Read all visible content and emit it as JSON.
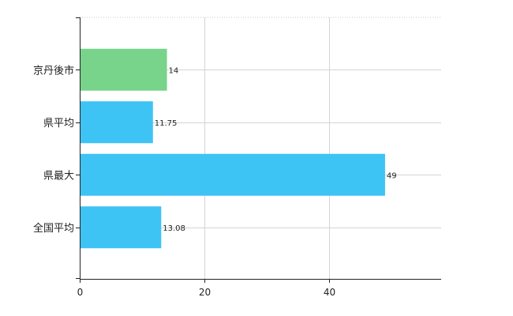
{
  "chart_data": {
    "type": "bar",
    "orientation": "horizontal",
    "categories": [
      "京丹後市",
      "県平均",
      "県最大",
      "全国平均"
    ],
    "values": [
      14,
      11.75,
      49,
      13.08
    ],
    "value_labels": [
      "14",
      "11.75",
      "49",
      "13.08"
    ],
    "bar_colors": [
      "#77d48a",
      "#3ec3f5",
      "#3ec3f5",
      "#3ec3f5"
    ],
    "xlim": [
      0,
      58
    ],
    "xticks": [
      0,
      20,
      40
    ],
    "xtick_labels": [
      "0",
      "20",
      "40"
    ],
    "grid": true,
    "legend": "none",
    "title": "",
    "xlabel": "",
    "ylabel": ""
  },
  "colors": {
    "highlight": "#77d48a",
    "base": "#3ec3f5",
    "grid": "#d4d4d4",
    "axis": "#222222"
  }
}
